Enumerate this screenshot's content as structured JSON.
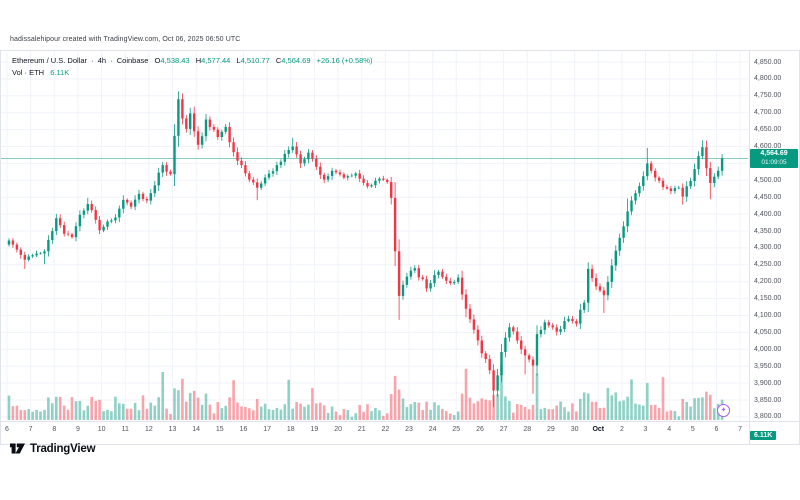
{
  "attribution": "hadissalehipour created with TradingView.com, Oct 06, 2025 06:50 UTC",
  "logo_text": "TradingView",
  "legend": {
    "title": "Ethereum / U.S. Dollar",
    "sep": "·",
    "interval": "4h",
    "exchange": "Coinbase",
    "ohlc": {
      "o_label": "O",
      "o": "4,538.43",
      "h_label": "H",
      "h": "4,577.44",
      "l_label": "L",
      "l": "4,510.77",
      "c_label": "C",
      "c": "4,564.69",
      "change": "+26.16 (+0.58%)"
    },
    "vol_label": "Vol · ETH",
    "vol_value": "6.11K"
  },
  "price_axis": {
    "tick_values": [
      4850,
      4800,
      4750,
      4700,
      4650,
      4600,
      4500,
      4450,
      4400,
      4350,
      4300,
      4250,
      4200,
      4150,
      4100,
      4050,
      4000,
      3950,
      3900,
      3850,
      3800
    ],
    "tick_labels": [
      "4,850.00",
      "4,800.00",
      "4,750.00",
      "4,700.00",
      "4,650.00",
      "4,600.00",
      "4,500.00",
      "4,450.00",
      "4,400.00",
      "4,350.00",
      "4,300.00",
      "4,250.00",
      "4,200.00",
      "4,150.00",
      "4,100.00",
      "4,050.00",
      "4,000.00",
      "3,950.00",
      "3,900.00",
      "3,850.00",
      "3,800.00"
    ],
    "last_price_label": "4,564.69",
    "countdown": "01:09:05"
  },
  "time_axis": {
    "labels": [
      "6",
      "7",
      "8",
      "9",
      "10",
      "11",
      "12",
      "13",
      "14",
      "15",
      "16",
      "17",
      "18",
      "19",
      "20",
      "21",
      "22",
      "23",
      "24",
      "25",
      "26",
      "27",
      "28",
      "29",
      "30",
      "Oct",
      "2",
      "3",
      "4",
      "5",
      "6",
      "7"
    ]
  },
  "badges": {
    "volume": "6.11K"
  },
  "colors": {
    "up": "#089981",
    "down": "#F23645",
    "up_vol": "rgba(8,153,129,0.45)",
    "down_vol": "rgba(242,54,69,0.45)",
    "grid": "#F0F3FA",
    "frame": "#E0E3EB",
    "axis_text": "#50535E",
    "price_line": "#089981",
    "marker": "#A95CE8"
  },
  "chart_data": {
    "type": "candlestick+volume",
    "title": "Ethereum / U.S. Dollar · 4h · Coinbase",
    "symbol": "ETH/USD",
    "interval": "4h",
    "exchange": "Coinbase",
    "ohlc_current": {
      "open": 4538.43,
      "high": 4577.44,
      "low": 4510.77,
      "close": 4564.69,
      "change": 26.16,
      "change_pct": 0.58
    },
    "volume_current": "6.11K",
    "date_range": "Sep 6 - Oct 6, 2025",
    "ylim": [
      3790,
      4890
    ],
    "grid_values": [
      4850,
      4800,
      4750,
      4700,
      4650,
      4600,
      4550,
      4500,
      4450,
      4400,
      4350,
      4300,
      4250,
      4200,
      4150,
      4100,
      4050,
      4000,
      3950,
      3900,
      3850,
      3800
    ],
    "candles_per_day": 6,
    "n_candles": 182,
    "first_open": 4310,
    "last_close": 4564.69,
    "close_keyframes": [
      [
        0,
        4322
      ],
      [
        2,
        4295
      ],
      [
        4,
        4265
      ],
      [
        6,
        4278
      ],
      [
        9,
        4290
      ],
      [
        12,
        4388
      ],
      [
        14,
        4342
      ],
      [
        16,
        4332
      ],
      [
        18,
        4398
      ],
      [
        20,
        4430
      ],
      [
        23,
        4352
      ],
      [
        25,
        4378
      ],
      [
        27,
        4390
      ],
      [
        29,
        4442
      ],
      [
        31,
        4422
      ],
      [
        33,
        4460
      ],
      [
        35,
        4440
      ],
      [
        37,
        4485
      ],
      [
        39,
        4545
      ],
      [
        41,
        4518
      ],
      [
        43,
        4740
      ],
      [
        45,
        4652
      ],
      [
        46,
        4698
      ],
      [
        48,
        4605
      ],
      [
        50,
        4680
      ],
      [
        53,
        4628
      ],
      [
        55,
        4658
      ],
      [
        58,
        4558
      ],
      [
        61,
        4502
      ],
      [
        63,
        4478
      ],
      [
        65,
        4508
      ],
      [
        68,
        4545
      ],
      [
        70,
        4578
      ],
      [
        72,
        4600
      ],
      [
        74,
        4550
      ],
      [
        76,
        4582
      ],
      [
        78,
        4540
      ],
      [
        80,
        4502
      ],
      [
        82,
        4528
      ],
      [
        85,
        4508
      ],
      [
        88,
        4520
      ],
      [
        91,
        4482
      ],
      [
        94,
        4505
      ],
      [
        96,
        4495
      ],
      [
        97,
        4448
      ],
      [
        98,
        4290
      ],
      [
        99,
        4158
      ],
      [
        101,
        4215
      ],
      [
        103,
        4240
      ],
      [
        106,
        4180
      ],
      [
        109,
        4230
      ],
      [
        112,
        4196
      ],
      [
        114,
        4212
      ],
      [
        116,
        4120
      ],
      [
        118,
        4058
      ],
      [
        120,
        3988
      ],
      [
        122,
        3938
      ],
      [
        123,
        3878
      ],
      [
        125,
        3992
      ],
      [
        127,
        4065
      ],
      [
        129,
        4026
      ],
      [
        131,
        3982
      ],
      [
        133,
        3952
      ],
      [
        134,
        4045
      ],
      [
        136,
        4080
      ],
      [
        139,
        4052
      ],
      [
        142,
        4090
      ],
      [
        144,
        4076
      ],
      [
        146,
        4138
      ],
      [
        147,
        4238
      ],
      [
        149,
        4186
      ],
      [
        151,
        4160
      ],
      [
        153,
        4248
      ],
      [
        155,
        4330
      ],
      [
        157,
        4408
      ],
      [
        159,
        4462
      ],
      [
        161,
        4512
      ],
      [
        162,
        4550
      ],
      [
        164,
        4508
      ],
      [
        166,
        4480
      ],
      [
        168,
        4468
      ],
      [
        170,
        4478
      ],
      [
        171,
        4452
      ],
      [
        173,
        4498
      ],
      [
        175,
        4572
      ],
      [
        176,
        4598
      ],
      [
        177,
        4536
      ],
      [
        178,
        4492
      ],
      [
        180,
        4528
      ],
      [
        181,
        4564.69
      ]
    ],
    "wick_overrides": [
      [
        4,
        "l",
        4238
      ],
      [
        9,
        "l",
        4252
      ],
      [
        20,
        "h",
        4448
      ],
      [
        43,
        "h",
        4763
      ],
      [
        63,
        "l",
        4441
      ],
      [
        72,
        "h",
        4626
      ],
      [
        99,
        "l",
        4087
      ],
      [
        116,
        "l",
        4095
      ],
      [
        123,
        "l",
        3829
      ],
      [
        131,
        "l",
        3926
      ],
      [
        133,
        "l",
        3869
      ],
      [
        147,
        "h",
        4257
      ],
      [
        151,
        "l",
        4107
      ],
      [
        157,
        "h",
        4446
      ],
      [
        162,
        "h",
        4596
      ],
      [
        171,
        "l",
        4428
      ],
      [
        176,
        "h",
        4618
      ],
      [
        178,
        "l",
        4444
      ]
    ],
    "volume_spikes": [
      [
        0,
        2.0
      ],
      [
        13,
        1.8
      ],
      [
        16,
        2.4
      ],
      [
        21,
        1.9
      ],
      [
        27,
        2.6
      ],
      [
        34,
        2.0
      ],
      [
        39,
        3.0
      ],
      [
        44,
        1.6
      ],
      [
        57,
        2.6
      ],
      [
        63,
        1.8
      ],
      [
        71,
        3.2
      ],
      [
        77,
        1.9
      ],
      [
        85,
        1.5
      ],
      [
        91,
        1.6
      ],
      [
        98,
        1.5
      ],
      [
        103,
        1.5
      ],
      [
        109,
        1.4
      ],
      [
        116,
        2.2
      ],
      [
        121,
        1.7
      ],
      [
        125,
        1.9
      ],
      [
        134,
        1.6
      ],
      [
        140,
        1.5
      ],
      [
        143,
        1.6
      ],
      [
        146,
        1.7
      ],
      [
        152,
        1.5
      ],
      [
        158,
        1.8
      ],
      [
        162,
        1.5
      ],
      [
        166,
        2.8
      ],
      [
        171,
        1.4
      ],
      [
        176,
        1.6
      ]
    ]
  }
}
